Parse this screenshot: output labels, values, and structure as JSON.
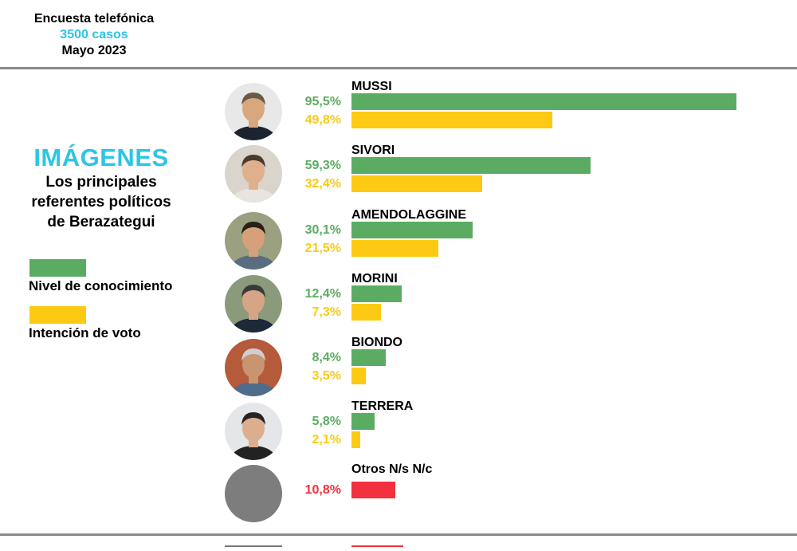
{
  "header": {
    "line1": "Encuesta telefónica",
    "line2": "3500 casos",
    "line3": "Mayo 2023"
  },
  "panel": {
    "title": "IMÁGENES",
    "subtitle_lines": [
      "Los principales",
      "referentes políticos",
      "de Berazategui"
    ]
  },
  "legend": [
    {
      "label": "Nivel de conocimiento",
      "color": "#5bac62"
    },
    {
      "label": "Intención de voto",
      "color": "#fcca12"
    }
  ],
  "colors": {
    "known": "#5bac62",
    "vote": "#fcca12",
    "other": "#f2303e",
    "cyan": "#2ec4e6"
  },
  "chart_data": {
    "type": "bar",
    "orientation": "horizontal",
    "categories": [
      "MUSSI",
      "SIVORI",
      "AMENDOLAGGINE",
      "MORINI",
      "BIONDO",
      "TERRERA",
      "Otros N/s N/c"
    ],
    "series": [
      {
        "name": "Nivel de conocimiento",
        "values": [
          95.5,
          59.3,
          30.1,
          12.4,
          8.4,
          5.8,
          null
        ],
        "labels": [
          "95,5%",
          "59,3%",
          "30,1%",
          "12,4%",
          "8,4%",
          "5,8%",
          null
        ]
      },
      {
        "name": "Intención de voto",
        "values": [
          49.8,
          32.4,
          21.5,
          7.3,
          3.5,
          2.1,
          10.8
        ],
        "labels": [
          "49,8%",
          "32,4%",
          "21,5%",
          "7,3%",
          "3,5%",
          "2,1%",
          "10,8%"
        ]
      }
    ],
    "xlim": [
      0,
      100
    ],
    "legend_placement": "left"
  }
}
